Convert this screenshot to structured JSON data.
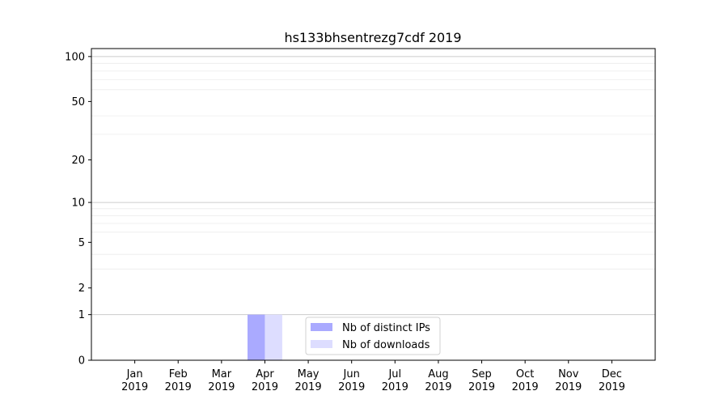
{
  "chart_data": {
    "type": "bar",
    "title": "hs133bhsentrezg7cdf 2019",
    "xlabel": "",
    "ylabel": "",
    "y_scale": "log(1+y)",
    "ylim": [
      0,
      113
    ],
    "y_ticks": [
      0,
      1,
      2,
      5,
      10,
      20,
      50,
      100
    ],
    "y_minor_grid": [
      3,
      4,
      6,
      7,
      8,
      9,
      30,
      40,
      60,
      70,
      80,
      90
    ],
    "y_major_grid": [
      1,
      10,
      100
    ],
    "grid": true,
    "categories": [
      "Jan\n2019",
      "Feb\n2019",
      "Mar\n2019",
      "Apr\n2019",
      "May\n2019",
      "Jun\n2019",
      "Jul\n2019",
      "Aug\n2019",
      "Sep\n2019",
      "Oct\n2019",
      "Nov\n2019",
      "Dec\n2019"
    ],
    "series": [
      {
        "name": "Nb of distinct IPs",
        "color": "#aaaaff",
        "values": [
          0,
          0,
          0,
          1,
          0,
          0,
          0,
          0,
          0,
          0,
          0,
          0
        ]
      },
      {
        "name": "Nb of downloads",
        "color": "#ddddff",
        "values": [
          0,
          0,
          0,
          1,
          0,
          0,
          0,
          0,
          0,
          0,
          0,
          0
        ]
      }
    ],
    "legend_placement": "lower-center"
  }
}
